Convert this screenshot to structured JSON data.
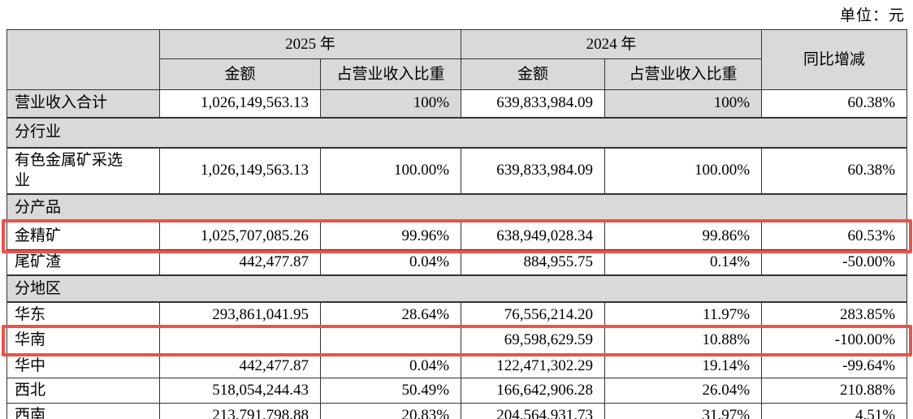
{
  "unit_label": "单位：元",
  "colors": {
    "header_fill": "#d9d9d9",
    "highlight_red": "#e8544b",
    "border": "#333333"
  },
  "table": {
    "header": {
      "year_2025": "2025 年",
      "year_2024": "2024 年",
      "amount": "金额",
      "pct_of_revenue": "占营业收入比重",
      "yoy": "同比增减"
    },
    "rows": [
      {
        "type": "data",
        "label": "营业收入合计",
        "amount_2025": "1,026,149,563.13",
        "pct_2025": "100%",
        "amount_2024": "639,833,984.09",
        "pct_2024": "100%",
        "yoy": "60.38%",
        "shaded_cells": true,
        "highlighted": false
      },
      {
        "type": "section",
        "label": "分行业"
      },
      {
        "type": "data",
        "label": "有色金属矿采选业",
        "amount_2025": "1,026,149,563.13",
        "pct_2025": "100.00%",
        "amount_2024": "639,833,984.09",
        "pct_2024": "100.00%",
        "yoy": "60.38%",
        "shaded_cells": false,
        "highlighted": false
      },
      {
        "type": "section",
        "label": "分产品"
      },
      {
        "type": "data",
        "label": "金精矿",
        "amount_2025": "1,025,707,085.26",
        "pct_2025": "99.96%",
        "amount_2024": "638,949,028.34",
        "pct_2024": "99.86%",
        "yoy": "60.53%",
        "shaded_cells": false,
        "highlighted": true
      },
      {
        "type": "data",
        "label": "尾矿渣",
        "amount_2025": "442,477.87",
        "pct_2025": "0.04%",
        "amount_2024": "884,955.75",
        "pct_2024": "0.14%",
        "yoy": "-50.00%",
        "shaded_cells": false,
        "highlighted": false
      },
      {
        "type": "section",
        "label": "分地区"
      },
      {
        "type": "data",
        "label": "华东",
        "amount_2025": "293,861,041.95",
        "pct_2025": "28.64%",
        "amount_2024": "76,556,214.20",
        "pct_2024": "11.97%",
        "yoy": "283.85%",
        "shaded_cells": false,
        "highlighted": false
      },
      {
        "type": "data",
        "label": "华南",
        "amount_2025": "",
        "pct_2025": "",
        "amount_2024": "69,598,629.59",
        "pct_2024": "10.88%",
        "yoy": "-100.00%",
        "shaded_cells": false,
        "highlighted": true
      },
      {
        "type": "data",
        "label": "华中",
        "amount_2025": "442,477.87",
        "pct_2025": "0.04%",
        "amount_2024": "122,471,302.29",
        "pct_2024": "19.14%",
        "yoy": "-99.64%",
        "shaded_cells": false,
        "highlighted": false
      },
      {
        "type": "data",
        "label": "西北",
        "amount_2025": "518,054,244.43",
        "pct_2025": "50.49%",
        "amount_2024": "166,642,906.28",
        "pct_2024": "26.04%",
        "yoy": "210.88%",
        "shaded_cells": false,
        "highlighted": false
      },
      {
        "type": "data",
        "label": "西南",
        "amount_2025": "213,791,798.88",
        "pct_2025": "20.83%",
        "amount_2024": "204,564,931.73",
        "pct_2024": "31.97%",
        "yoy": "4.51%",
        "shaded_cells": false,
        "highlighted": false
      }
    ]
  }
}
